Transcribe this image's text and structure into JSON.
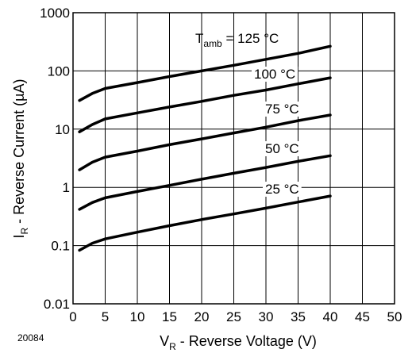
{
  "chart_data": {
    "type": "line",
    "figure_id": "20084",
    "xlabel_main": "V",
    "xlabel_sub": "R",
    "xlabel_rest": " -  Reverse Voltage  (V)",
    "ylabel_main": "I",
    "ylabel_sub": "R",
    "ylabel_rest": " -  Reverse Current (µA)",
    "x_ticks": [
      0,
      5,
      10,
      15,
      20,
      25,
      30,
      35,
      40,
      45,
      50
    ],
    "x_tick_labels": [
      "0",
      "5",
      "10",
      "15",
      "20",
      "25",
      "30",
      "35",
      "40",
      "45",
      "50"
    ],
    "y_ticks": [
      0.01,
      0.1,
      1,
      10,
      100,
      1000
    ],
    "y_tick_labels": [
      "0.01",
      "0.1",
      "1",
      "10",
      "100",
      "1000"
    ],
    "xlim": [
      0,
      50
    ],
    "ylim": [
      0.01,
      1000
    ],
    "y_scale": "log",
    "grid": true,
    "series": [
      {
        "name_main": "T",
        "name_sub": "amb",
        "name_rest": " = 125 °C",
        "x": [
          1,
          3,
          5,
          10,
          15,
          20,
          25,
          30,
          35,
          40
        ],
        "y": [
          31,
          41,
          50,
          63,
          80,
          100,
          125,
          158,
          200,
          265
        ]
      },
      {
        "name_main": "100 °C",
        "name_sub": "",
        "name_rest": "",
        "x": [
          1,
          3,
          5,
          10,
          15,
          20,
          25,
          30,
          35,
          40
        ],
        "y": [
          9,
          12,
          15,
          19,
          24,
          30,
          38,
          47,
          60,
          76
        ]
      },
      {
        "name_main": "75 °C",
        "name_sub": "",
        "name_rest": "",
        "x": [
          1,
          3,
          5,
          10,
          15,
          20,
          25,
          30,
          35,
          40
        ],
        "y": [
          2.0,
          2.7,
          3.3,
          4.2,
          5.4,
          6.8,
          8.6,
          10.8,
          14,
          17.5
        ]
      },
      {
        "name_main": "50 °C",
        "name_sub": "",
        "name_rest": "",
        "x": [
          1,
          3,
          5,
          10,
          15,
          20,
          25,
          30,
          35,
          40
        ],
        "y": [
          0.42,
          0.55,
          0.66,
          0.85,
          1.08,
          1.38,
          1.75,
          2.2,
          2.8,
          3.5
        ]
      },
      {
        "name_main": "25 °C",
        "name_sub": "",
        "name_rest": "",
        "x": [
          1,
          3,
          5,
          10,
          15,
          20,
          25,
          30,
          35,
          40
        ],
        "y": [
          0.083,
          0.11,
          0.13,
          0.17,
          0.22,
          0.28,
          0.35,
          0.44,
          0.56,
          0.71
        ]
      }
    ]
  }
}
